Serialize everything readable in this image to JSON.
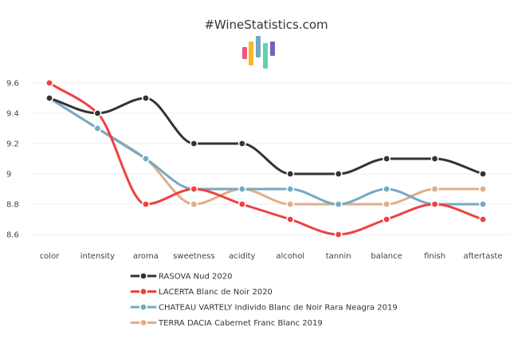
{
  "header": {
    "site_title": "#WineStatistics.com",
    "logo_bar_colors": [
      "#f2557a",
      "#f4b928",
      "#6fa8c9",
      "#5fd3a8",
      "#7a5fc0"
    ]
  },
  "chart_data": {
    "type": "line",
    "title": "",
    "xlabel": "",
    "ylabel": "",
    "categories": [
      "color",
      "intensity",
      "aroma",
      "sweetness",
      "acidity",
      "alcohol",
      "tannin",
      "balance",
      "finish",
      "aftertaste"
    ],
    "yticks": [
      8.6,
      8.8,
      9,
      9.2,
      9.4,
      9.6
    ],
    "ytick_labels": [
      "8.6",
      "8.8",
      "9",
      "9.2",
      "9.4",
      "9.6"
    ],
    "ylim": [
      8.5,
      9.7
    ],
    "grid": true,
    "legend_position": "bottom",
    "series": [
      {
        "name": "RASOVA Nud 2020",
        "color": "#333333",
        "values": [
          9.5,
          9.4,
          9.5,
          9.2,
          9.2,
          9.0,
          9.0,
          9.1,
          9.1,
          9.0
        ]
      },
      {
        "name": "LACERTA Blanc de Noir 2020",
        "color": "#f04040",
        "values": [
          9.6,
          9.4,
          8.8,
          8.9,
          8.8,
          8.7,
          8.6,
          8.7,
          8.8,
          8.7
        ]
      },
      {
        "name": "CHATEAU VARTELY Individo Blanc de Noir Rara Neagra 2019",
        "color": "#76a9c3",
        "values": [
          9.5,
          9.3,
          9.1,
          8.9,
          8.9,
          8.9,
          8.8,
          8.9,
          8.8,
          8.8
        ]
      },
      {
        "name": "TERRA DACIA Cabernet Franc Blanc 2019",
        "color": "#dfae88",
        "values": [
          9.5,
          9.3,
          9.1,
          8.8,
          8.9,
          8.8,
          8.8,
          8.8,
          8.9,
          8.9
        ]
      }
    ]
  }
}
